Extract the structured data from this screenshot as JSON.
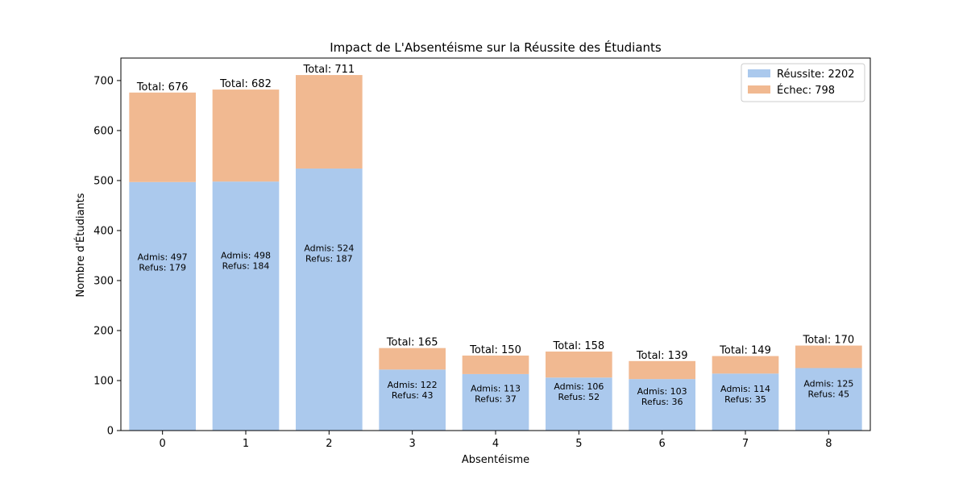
{
  "chart_data": {
    "type": "bar",
    "stacked": true,
    "title": "Impact de L'Absentéisme sur la Réussite des Étudiants",
    "xlabel": "Absentéisme",
    "ylabel": "Nombre d'Étudiants",
    "categories": [
      "0",
      "1",
      "2",
      "3",
      "4",
      "5",
      "6",
      "7",
      "8"
    ],
    "ylim": [
      0,
      745
    ],
    "yticks": [
      0,
      100,
      200,
      300,
      400,
      500,
      600,
      700
    ],
    "grid": false,
    "legend_position": "top-right",
    "series": [
      {
        "name": "Réussite: 2202",
        "color": "#abc9ed",
        "values": [
          497,
          498,
          524,
          122,
          113,
          106,
          103,
          114,
          125
        ]
      },
      {
        "name": "Échec: 798",
        "color": "#f1b991",
        "values": [
          179,
          184,
          187,
          43,
          37,
          52,
          36,
          35,
          45
        ]
      }
    ],
    "total_labels": [
      "Total: 676",
      "Total: 682",
      "Total: 711",
      "Total: 165",
      "Total: 150",
      "Total: 158",
      "Total: 139",
      "Total: 149",
      "Total: 170"
    ],
    "bar_labels": [
      [
        "Admis: 497",
        "Refus: 179"
      ],
      [
        "Admis: 498",
        "Refus: 184"
      ],
      [
        "Admis: 524",
        "Refus: 187"
      ],
      [
        "Admis: 122",
        "Refus: 43"
      ],
      [
        "Admis: 113",
        "Refus: 37"
      ],
      [
        "Admis: 106",
        "Refus: 52"
      ],
      [
        "Admis: 103",
        "Refus: 36"
      ],
      [
        "Admis: 114",
        "Refus: 35"
      ],
      [
        "Admis: 125",
        "Refus: 45"
      ]
    ]
  }
}
